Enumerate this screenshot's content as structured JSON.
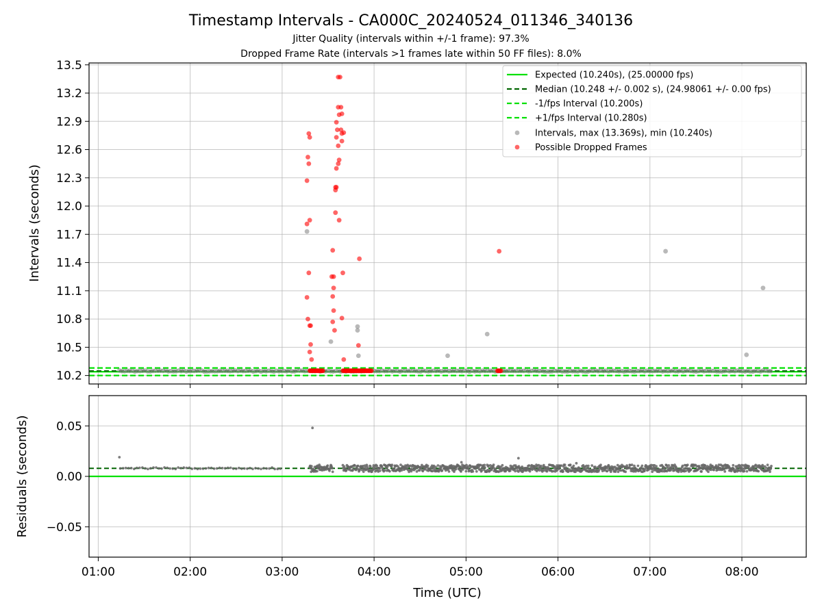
{
  "chart_data": [
    {
      "type": "scatter",
      "title": "Timestamp Intervals - CA000C_20240524_011346_340136",
      "subtitle_lines": [
        "Jitter Quality (intervals within +/-1 frame): 97.3%",
        "Dropped Frame Rate (intervals >1 frames late within 50 FF files): 8.0%"
      ],
      "ylabel": "Intervals (seconds)",
      "xlim": [
        0.9,
        8.7
      ],
      "ylim": [
        10.11,
        13.52
      ],
      "y_ticks": [
        10.2,
        10.5,
        10.8,
        11.1,
        11.4,
        11.7,
        12.0,
        12.3,
        12.6,
        12.9,
        13.2,
        13.5
      ],
      "y_tick_labels": [
        "10.2",
        "10.5",
        "10.8",
        "11.1",
        "11.4",
        "11.7",
        "12.0",
        "12.3",
        "12.6",
        "12.9",
        "13.2",
        "13.5"
      ],
      "grid": true,
      "legend_position": "top-right",
      "legend": [
        "Expected (10.240s), (25.00000 fps)",
        "Median (10.248 +/- 0.002 s), (24.98061 +/- 0.00 fps)",
        "-1/fps Interval (10.200s)",
        "+1/fps Interval (10.280s)",
        "Intervals, max (13.369s), min (10.240s)",
        "Possible Dropped Frames"
      ],
      "reference_lines": {
        "expected": 10.24,
        "median": 10.248,
        "minus_one_fps": 10.2,
        "plus_one_fps": 10.28
      },
      "series": [
        {
          "name": "Intervals, max (13.369s), min (10.240s)",
          "color": "#808080",
          "x_range": [
            1.23,
            8.32
          ],
          "baseline_y": 10.248,
          "outliers": [
            [
              3.27,
              11.73
            ],
            [
              3.53,
              10.56
            ],
            [
              3.82,
              10.72
            ],
            [
              3.82,
              10.68
            ],
            [
              3.83,
              10.41
            ],
            [
              4.8,
              10.41
            ],
            [
              5.23,
              10.64
            ],
            [
              7.17,
              11.52
            ],
            [
              8.05,
              10.42
            ],
            [
              8.23,
              11.13
            ]
          ]
        },
        {
          "name": "Possible Dropped Frames",
          "color": "#ff0000",
          "baseline_y": 10.25,
          "baseline_segments": [
            [
              3.3,
              3.45
            ],
            [
              3.66,
              3.98
            ],
            [
              5.34,
              5.38
            ]
          ],
          "points": [
            [
              3.29,
              12.77
            ],
            [
              3.3,
              12.73
            ],
            [
              3.28,
              12.52
            ],
            [
              3.29,
              12.45
            ],
            [
              3.27,
              12.27
            ],
            [
              3.27,
              11.81
            ],
            [
              3.3,
              11.85
            ],
            [
              3.29,
              11.29
            ],
            [
              3.27,
              11.03
            ],
            [
              3.28,
              10.8
            ],
            [
              3.3,
              10.73
            ],
            [
              3.31,
              10.73
            ],
            [
              3.31,
              10.53
            ],
            [
              3.3,
              10.45
            ],
            [
              3.32,
              10.37
            ],
            [
              3.55,
              11.53
            ],
            [
              3.54,
              11.25
            ],
            [
              3.56,
              11.25
            ],
            [
              3.56,
              11.13
            ],
            [
              3.55,
              11.04
            ],
            [
              3.56,
              10.89
            ],
            [
              3.55,
              10.77
            ],
            [
              3.57,
              10.68
            ],
            [
              3.59,
              12.89
            ],
            [
              3.61,
              13.37
            ],
            [
              3.63,
              13.37
            ],
            [
              3.61,
              13.05
            ],
            [
              3.64,
              13.05
            ],
            [
              3.62,
              12.97
            ],
            [
              3.65,
              12.98
            ],
            [
              3.6,
              12.81
            ],
            [
              3.64,
              12.81
            ],
            [
              3.65,
              12.77
            ],
            [
              3.67,
              12.78
            ],
            [
              3.59,
              12.73
            ],
            [
              3.65,
              12.69
            ],
            [
              3.61,
              12.64
            ],
            [
              3.62,
              12.49
            ],
            [
              3.61,
              12.45
            ],
            [
              3.59,
              12.4
            ],
            [
              3.58,
              12.2
            ],
            [
              3.59,
              12.2
            ],
            [
              3.58,
              12.17
            ],
            [
              3.58,
              11.93
            ],
            [
              3.62,
              11.85
            ],
            [
              3.66,
              11.29
            ],
            [
              3.65,
              10.81
            ],
            [
              3.67,
              10.37
            ],
            [
              3.83,
              10.52
            ],
            [
              3.84,
              11.44
            ],
            [
              5.36,
              11.52
            ]
          ]
        }
      ]
    },
    {
      "type": "scatter",
      "ylabel": "Residuals (seconds)",
      "xlabel": "Time (UTC)",
      "xlim": [
        0.9,
        8.7
      ],
      "ylim": [
        -0.08,
        0.08
      ],
      "y_ticks": [
        -0.05,
        0.0,
        0.05
      ],
      "y_tick_labels": [
        "−0.05",
        "0.00",
        "0.05"
      ],
      "x_ticks": [
        1,
        2,
        3,
        4,
        5,
        6,
        7,
        8
      ],
      "x_tick_labels": [
        "01:00",
        "02:00",
        "03:00",
        "04:00",
        "05:00",
        "06:00",
        "07:00",
        "08:00"
      ],
      "grid": true,
      "reference_lines": {
        "expected": 0.0,
        "median": 0.008
      },
      "series": [
        {
          "color": "#666666",
          "baseline_y": 0.008,
          "segments": [
            [
              1.24,
              3.0
            ],
            [
              3.3,
              3.55
            ],
            [
              3.66,
              8.32
            ]
          ],
          "outliers": [
            [
              1.23,
              0.019
            ],
            [
              3.33,
              0.048
            ],
            [
              5.57,
              0.018
            ],
            [
              4.95,
              0.014
            ],
            [
              6.2,
              0.013
            ]
          ]
        }
      ]
    }
  ]
}
